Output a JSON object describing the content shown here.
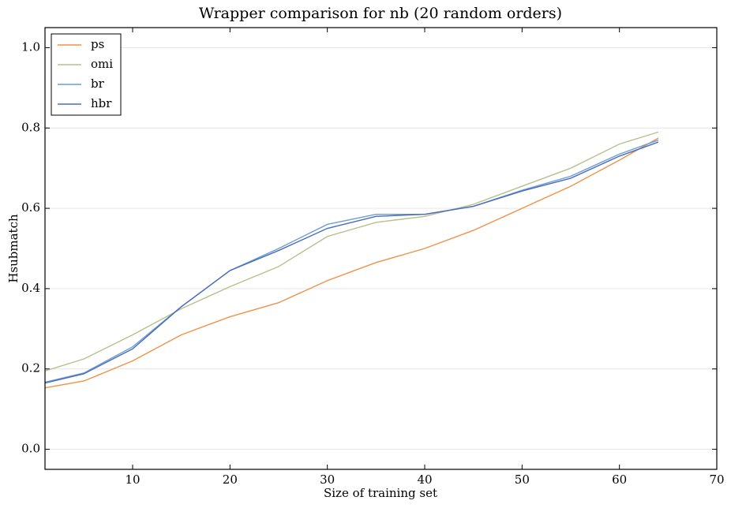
{
  "chart_data": {
    "type": "line",
    "title": "Wrapper comparison for nb (20 random orders)",
    "xlabel": "Size of training set",
    "ylabel": "Hsubmatch",
    "x": [
      1,
      5,
      10,
      15,
      20,
      25,
      30,
      35,
      40,
      45,
      50,
      55,
      60,
      64
    ],
    "series": [
      {
        "name": "ps",
        "color": "#f0914a",
        "values": [
          0.153,
          0.17,
          0.22,
          0.285,
          0.33,
          0.365,
          0.42,
          0.465,
          0.5,
          0.545,
          0.6,
          0.655,
          0.72,
          0.775
        ]
      },
      {
        "name": "omi",
        "color": "#b5c08c",
        "values": [
          0.195,
          0.225,
          0.285,
          0.35,
          0.405,
          0.455,
          0.53,
          0.565,
          0.58,
          0.61,
          0.655,
          0.7,
          0.76,
          0.79
        ]
      },
      {
        "name": "br",
        "color": "#6a9fce",
        "values": [
          0.167,
          0.19,
          0.255,
          0.355,
          0.445,
          0.5,
          0.56,
          0.585,
          0.585,
          0.605,
          0.645,
          0.68,
          0.735,
          0.77
        ]
      },
      {
        "name": "hbr",
        "color": "#4b6bbf",
        "values": [
          0.165,
          0.188,
          0.25,
          0.355,
          0.445,
          0.495,
          0.55,
          0.58,
          0.585,
          0.605,
          0.643,
          0.675,
          0.73,
          0.765
        ]
      }
    ],
    "xlim": [
      1,
      70
    ],
    "xticks": [
      10,
      20,
      30,
      40,
      50,
      60,
      70
    ],
    "ylim": [
      -0.05,
      1.05
    ],
    "yticks": [
      {
        "value": 0,
        "label": "0.0"
      },
      {
        "value": 0.2,
        "label": "0.2"
      },
      {
        "value": 0.4,
        "label": "0.4"
      },
      {
        "value": 0.6,
        "label": "0.6"
      },
      {
        "value": 0.8,
        "label": "0.8"
      },
      {
        "value": 1,
        "label": "1.0"
      }
    ],
    "grid": true,
    "legend": "upper left"
  }
}
